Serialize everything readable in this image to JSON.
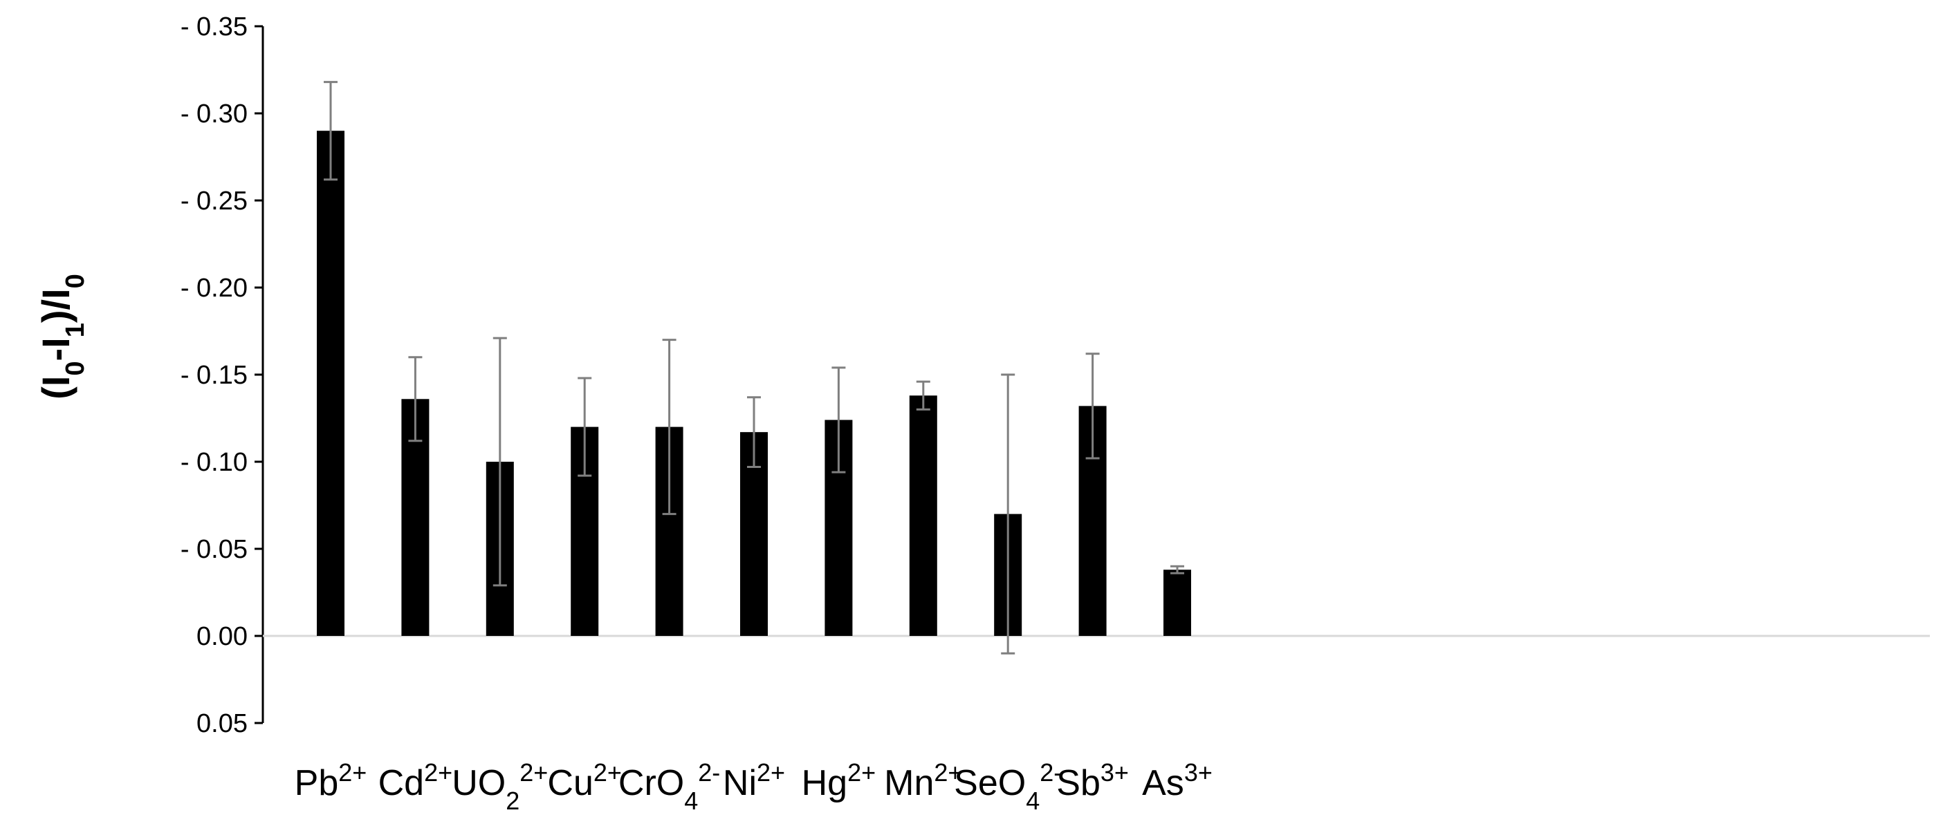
{
  "chart_data": {
    "type": "bar",
    "title": "",
    "xlabel": "",
    "ylabel": {
      "parts": [
        {
          "text": "(I",
          "sub": false
        },
        {
          "text": "0",
          "sub": true
        },
        {
          "text": "-I",
          "sub": false
        },
        {
          "text": "1",
          "sub": true
        },
        {
          "text": ")/I",
          "sub": false
        },
        {
          "text": "0",
          "sub": true
        }
      ]
    },
    "ylim": [
      -0.05,
      0.35
    ],
    "yticks": [
      {
        "value": 0.35,
        "label": "- 0.35"
      },
      {
        "value": 0.3,
        "label": "- 0.30"
      },
      {
        "value": 0.25,
        "label": "- 0.25"
      },
      {
        "value": 0.2,
        "label": "- 0.20"
      },
      {
        "value": 0.15,
        "label": "- 0.15"
      },
      {
        "value": 0.1,
        "label": "- 0.10"
      },
      {
        "value": 0.05,
        "label": "- 0.05"
      },
      {
        "value": 0.0,
        "label": "0.00"
      },
      {
        "value": -0.05,
        "label": "0.05"
      }
    ],
    "categories": [
      {
        "base": "Pb",
        "sub": "",
        "sup": "2+"
      },
      {
        "base": "Cd",
        "sub": "",
        "sup": "2+"
      },
      {
        "base": "UO",
        "sub": "2",
        "sup": "2+"
      },
      {
        "base": "Cu",
        "sub": "",
        "sup": "2+"
      },
      {
        "base": "CrO",
        "sub": "4",
        "sup": "2-"
      },
      {
        "base": "Ni",
        "sub": "",
        "sup": "2+"
      },
      {
        "base": "Hg",
        "sub": "",
        "sup": "2+"
      },
      {
        "base": "Mn",
        "sub": "",
        "sup": "2+"
      },
      {
        "base": "SeO",
        "sub": "4",
        "sup": "2-"
      },
      {
        "base": "Sb",
        "sub": "",
        "sup": "3+"
      },
      {
        "base": "As",
        "sub": "",
        "sup": "3+"
      }
    ],
    "series": [
      {
        "values": [
          0.29,
          0.136,
          0.1,
          0.12,
          0.12,
          0.117,
          0.124,
          0.138,
          0.07,
          0.132,
          0.038
        ],
        "error": [
          0.028,
          0.024,
          0.071,
          0.028,
          0.05,
          0.02,
          0.03,
          0.008,
          0.08,
          0.03,
          0.002
        ],
        "color": "#000000"
      }
    ],
    "grid": false,
    "legend": "none",
    "colors": {
      "bar": "#000000",
      "errorbar": "#7f7f7f",
      "axis": "#000000",
      "zeroline": "#d9d9d9"
    }
  }
}
